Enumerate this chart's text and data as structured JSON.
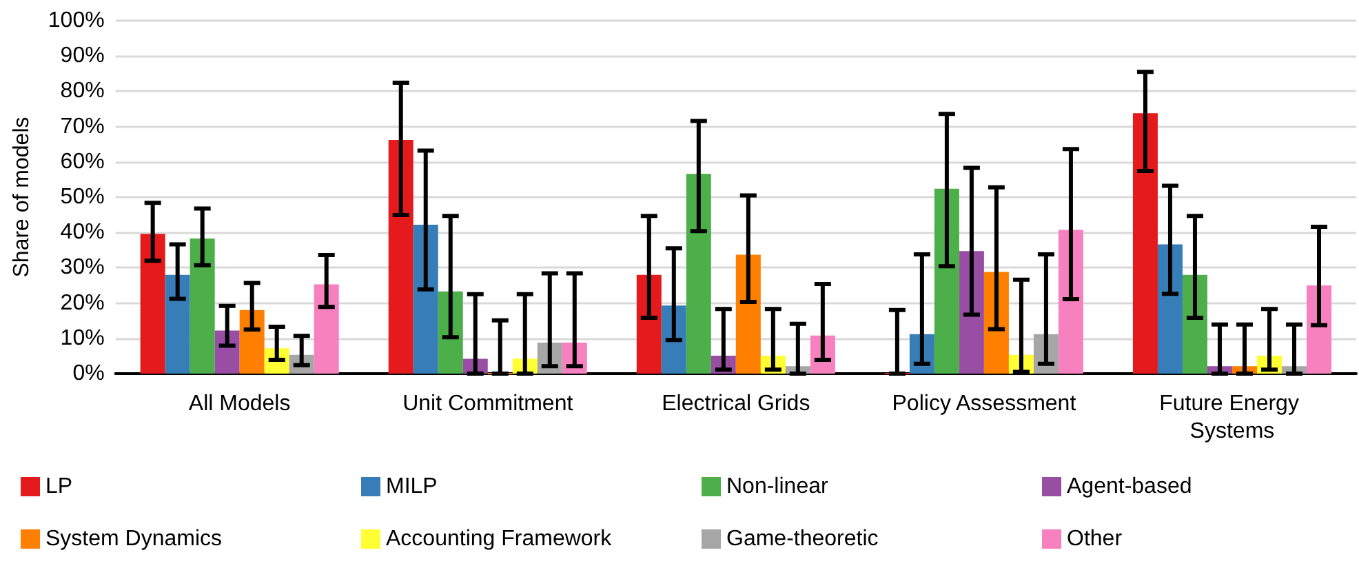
{
  "chart_data": {
    "type": "bar",
    "ylabel": "Share of models",
    "categories": [
      "All Models",
      "Unit Commitment",
      "Electrical Grids",
      "Policy Assessment",
      "Future Energy Systems"
    ],
    "ylim": [
      0,
      100
    ],
    "yticks": [
      {
        "value": 0,
        "label": "0%"
      },
      {
        "value": 10,
        "label": "10%"
      },
      {
        "value": 20,
        "label": "20%"
      },
      {
        "value": 30,
        "label": "30%"
      },
      {
        "value": 40,
        "label": "40%"
      },
      {
        "value": 50,
        "label": "50%"
      },
      {
        "value": 60,
        "label": "60%"
      },
      {
        "value": 70,
        "label": "70%"
      },
      {
        "value": 80,
        "label": "80%"
      },
      {
        "value": 90,
        "label": "90%"
      },
      {
        "value": 100,
        "label": "100%"
      }
    ],
    "grid": "y",
    "legend": "bottom",
    "series": [
      {
        "name": "LP",
        "color": "#e41a1c",
        "values": [
          39.6,
          66.2,
          28,
          0,
          73.8
        ],
        "errors": [
          [
            32,
            48.4
          ],
          [
            44.9,
            82.4
          ],
          [
            15.8,
            44.7
          ],
          [
            0,
            18
          ],
          [
            57.4,
            85.5
          ]
        ]
      },
      {
        "name": "MILP",
        "color": "#377eb8",
        "values": [
          28,
          42.2,
          19.3,
          11.2,
          36.6
        ],
        "errors": [
          [
            21.2,
            36.6
          ],
          [
            23.9,
            63.2
          ],
          [
            9.5,
            35.5
          ],
          [
            2.8,
            33.8
          ],
          [
            22.6,
            53.2
          ]
        ]
      },
      {
        "name": "Non-linear",
        "color": "#4daf4a",
        "values": [
          38.3,
          23.3,
          56.6,
          52.4,
          28
        ],
        "errors": [
          [
            30.7,
            46.8
          ],
          [
            10.3,
            44.7
          ],
          [
            40.4,
            71.6
          ],
          [
            30.4,
            73.6
          ],
          [
            15.8,
            44.7
          ]
        ]
      },
      {
        "name": "Agent-based",
        "color": "#984ea3",
        "values": [
          12.2,
          4.2,
          5.1,
          34.7,
          2.1
        ],
        "errors": [
          [
            7.9,
            19.2
          ],
          [
            0,
            22.5
          ],
          [
            1.1,
            18.3
          ],
          [
            16.7,
            58.3
          ],
          [
            0,
            13.9
          ]
        ]
      },
      {
        "name": "System Dynamics",
        "color": "#ff7f00",
        "values": [
          18,
          0,
          33.7,
          28.8,
          2.1
        ],
        "errors": [
          [
            12.5,
            25.7
          ],
          [
            0,
            15.1
          ],
          [
            20.3,
            50.5
          ],
          [
            12.6,
            52.8
          ],
          [
            0,
            13.9
          ]
        ]
      },
      {
        "name": "Accounting Framework",
        "color": "#ffff33",
        "values": [
          7.2,
          4.2,
          5.1,
          5.3,
          5.1
        ],
        "errors": [
          [
            3.9,
            13.3
          ],
          [
            0,
            22.5
          ],
          [
            1.1,
            18.3
          ],
          [
            0.5,
            26.6
          ],
          [
            1.1,
            18.3
          ]
        ]
      },
      {
        "name": "Game-theoretic",
        "color": "#a6a6a6",
        "values": [
          5.3,
          8.8,
          2.1,
          11.2,
          2.1
        ],
        "errors": [
          [
            2.4,
            10.7
          ],
          [
            2.1,
            28.4
          ],
          [
            0,
            14.1
          ],
          [
            2.8,
            33.8
          ],
          [
            0,
            13.9
          ]
        ]
      },
      {
        "name": "Other",
        "color": "#f781bf",
        "values": [
          25.3,
          8.8,
          10.8,
          40.7,
          25
        ],
        "errors": [
          [
            18.9,
            33.6
          ],
          [
            2.1,
            28.4
          ],
          [
            3.9,
            25.4
          ],
          [
            21.1,
            63.6
          ],
          [
            13.7,
            41.6
          ]
        ]
      }
    ]
  }
}
